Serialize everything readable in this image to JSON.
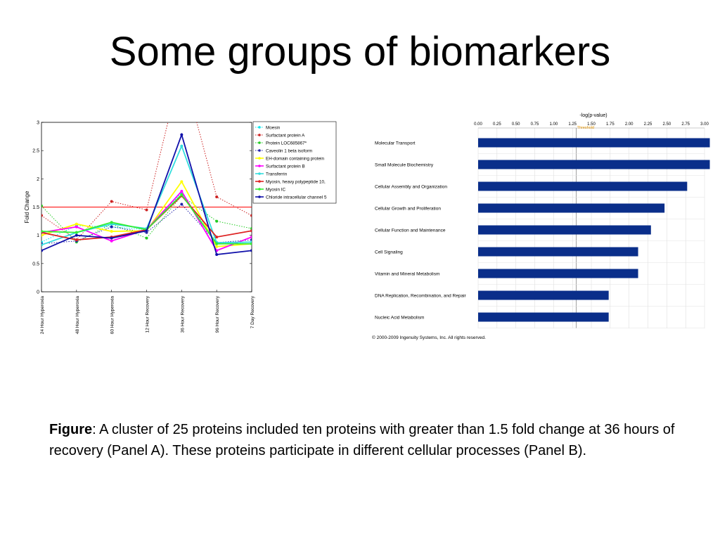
{
  "slide": {
    "title": "Some groups of biomarkers",
    "caption_label": "Figure",
    "caption_text": ": A cluster of 25 proteins included ten proteins with greater than 1.5 fold change at 36 hours of recovery (Panel A). These proteins participate in different cellular processes (Panel B)."
  },
  "chart_data": [
    {
      "type": "line",
      "ylabel": "Fold Change",
      "xlabel": "",
      "ylim": [
        0,
        3
      ],
      "yticks": [
        "0",
        "0.5",
        "1",
        "1.5",
        "2",
        "2.5",
        "3"
      ],
      "categories": [
        "24 Hour Hyperoxia",
        "48 Hour Hyperoxia",
        "60 Hour Hyperoxia",
        "12 Hour Recovery",
        "36 Hour Recovery",
        "96 Hour Recovery",
        "7 Day Recovery"
      ],
      "threshold": {
        "value": 1.5,
        "color": "#ff0000"
      },
      "grid": false,
      "legend_position": "top-right",
      "series": [
        {
          "name": "Moesin",
          "color": "#00e5ee",
          "dashed": true,
          "values": [
            0.88,
            1.17,
            1.15,
            1.1,
            1.75,
            0.87,
            0.85
          ]
        },
        {
          "name": "Surfactant protein A",
          "color": "#cc2222",
          "dashed": true,
          "values": [
            1.35,
            0.92,
            1.6,
            1.45,
            4.0,
            1.68,
            1.35
          ]
        },
        {
          "name": "Protein LOC685867*",
          "color": "#22cc22",
          "dashed": true,
          "values": [
            1.52,
            0.88,
            1.2,
            0.95,
            1.7,
            1.25,
            1.12
          ]
        },
        {
          "name": "Caveolin 1 beta isoform",
          "color": "#2222aa",
          "dashed": true,
          "values": [
            0.85,
            0.9,
            1.15,
            1.05,
            1.55,
            0.87,
            0.92
          ]
        },
        {
          "name": "EH-domain containing protein",
          "color": "#ffff00",
          "dashed": false,
          "values": [
            1.0,
            1.2,
            1.07,
            1.08,
            1.95,
            0.8,
            0.85
          ]
        },
        {
          "name": "Surfactant protein B",
          "color": "#ff00ff",
          "dashed": false,
          "values": [
            1.05,
            1.15,
            0.9,
            1.1,
            1.78,
            0.73,
            0.97
          ]
        },
        {
          "name": "Transferrin",
          "color": "#33dddd",
          "dashed": false,
          "values": [
            0.83,
            1.05,
            1.2,
            1.12,
            2.58,
            0.87,
            0.88
          ]
        },
        {
          "name": "Myosin, heavy polypeptide 10,",
          "color": "#dd2222",
          "dashed": false,
          "values": [
            1.05,
            0.92,
            0.97,
            1.1,
            1.7,
            0.97,
            1.08
          ]
        },
        {
          "name": "Myosin IC",
          "color": "#33ee33",
          "dashed": false,
          "values": [
            1.07,
            1.05,
            1.23,
            1.1,
            1.72,
            0.85,
            0.85
          ]
        },
        {
          "name": "Chloride intracellular channel 5",
          "color": "#1010aa",
          "dashed": false,
          "values": [
            0.73,
            1.0,
            0.95,
            1.08,
            2.78,
            0.66,
            0.73
          ]
        }
      ]
    },
    {
      "type": "bar",
      "orientation": "horizontal",
      "xlabel": "-log(p-value)",
      "threshold_label": "Threshold",
      "threshold": 1.3,
      "xlim": [
        0,
        3.0
      ],
      "xticks": [
        "0.00",
        "0.25",
        "0.50",
        "0.75",
        "1.00",
        "1.25",
        "1.50",
        "1.75",
        "2.00",
        "2.25",
        "2.50",
        "2.75",
        "3.00"
      ],
      "bar_color": "#0a2e8a",
      "categories": [
        "Molecular Transport",
        "Small Molecule Biochemistry",
        "Cellular Assembly and Organization",
        "Cellular Growth and Proliferation",
        "Cellular Function and Maintenance",
        "Cell Signaling",
        "Vitamin and Mineral Metabolism",
        "DNA Replication, Recombination, and Repair",
        "Nucleic Acid Metabolism"
      ],
      "values": [
        3.07,
        3.07,
        2.77,
        2.47,
        2.29,
        2.12,
        2.12,
        1.73,
        1.73
      ],
      "footnote": "© 2000-2009 Ingenuity Systems, Inc. All rights reserved."
    }
  ]
}
